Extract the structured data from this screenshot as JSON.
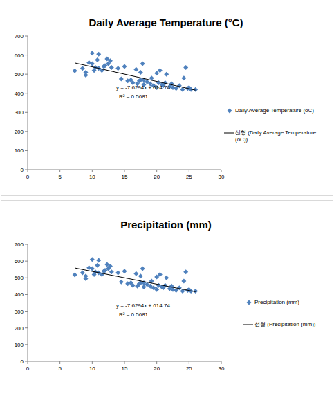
{
  "chart_data": [
    {
      "type": "scatter",
      "title": "Daily Average Temperature (°C)",
      "x": [
        7.3,
        8.5,
        9,
        9,
        9.5,
        10,
        10,
        10.3,
        10.5,
        10.8,
        11,
        11,
        11.5,
        11.8,
        12,
        12.3,
        12.5,
        12.8,
        13,
        14,
        14.5,
        15,
        15.5,
        16,
        16.3,
        16.8,
        17,
        17.3,
        17.5,
        17.5,
        17.8,
        18,
        18,
        18.5,
        19,
        19.2,
        19.5,
        20,
        20,
        20.3,
        20.5,
        20.8,
        21,
        21.3,
        21.5,
        22,
        22.3,
        22.5,
        23,
        23.5,
        24,
        24.2,
        24.5,
        24.8,
        25,
        25.3,
        26
      ],
      "series": [
        {
          "name": "Daily Average Temperature (oC)",
          "color": "#4f81bd",
          "marker": "diamond",
          "values": [
            518,
            530,
            510,
            495,
            560,
            555,
            610,
            520,
            535,
            575,
            530,
            605,
            520,
            540,
            545,
            580,
            555,
            570,
            535,
            530,
            475,
            540,
            465,
            470,
            455,
            525,
            450,
            465,
            470,
            510,
            555,
            445,
            470,
            460,
            450,
            480,
            440,
            430,
            505,
            455,
            520,
            445,
            440,
            455,
            500,
            435,
            450,
            430,
            425,
            440,
            420,
            480,
            535,
            425,
            430,
            420,
            420
          ]
        }
      ],
      "trendline": {
        "name": "선형 (Daily Average Temperature (oC))",
        "color": "#000000",
        "line_style": "solid",
        "slope": -7.6294,
        "intercept": 614.74,
        "equation": "y = -7.6294x + 614.74",
        "r2": 0.5681,
        "r2_label": "R² = 0.5681"
      },
      "xlim": [
        0,
        30
      ],
      "xticks": [
        0,
        5,
        10,
        15,
        20,
        25,
        30
      ],
      "ylim": [
        0,
        700
      ],
      "yticks": [
        0,
        100,
        200,
        300,
        400,
        500,
        600,
        700
      ],
      "grid": false,
      "legend": "right"
    },
    {
      "type": "scatter",
      "title": "Precipitation (mm)",
      "x": [
        7.3,
        8.5,
        9,
        9,
        9.5,
        10,
        10,
        10.3,
        10.5,
        10.8,
        11,
        11,
        11.5,
        11.8,
        12,
        12.3,
        12.5,
        12.8,
        13,
        14,
        14.5,
        15,
        15.5,
        16,
        16.3,
        16.8,
        17,
        17.3,
        17.5,
        17.5,
        17.8,
        18,
        18,
        18.5,
        19,
        19.2,
        19.5,
        20,
        20,
        20.3,
        20.5,
        20.8,
        21,
        21.3,
        21.5,
        22,
        22.3,
        22.5,
        23,
        23.5,
        24,
        24.2,
        24.5,
        24.8,
        25,
        25.3,
        26
      ],
      "series": [
        {
          "name": "Precipitation (mm)",
          "color": "#4f81bd",
          "marker": "diamond",
          "values": [
            518,
            530,
            510,
            495,
            560,
            555,
            610,
            520,
            535,
            575,
            530,
            605,
            520,
            540,
            545,
            580,
            555,
            570,
            535,
            530,
            475,
            540,
            465,
            470,
            455,
            525,
            450,
            465,
            470,
            510,
            555,
            445,
            470,
            460,
            450,
            480,
            440,
            430,
            505,
            455,
            520,
            445,
            440,
            455,
            500,
            435,
            450,
            430,
            425,
            440,
            420,
            480,
            535,
            425,
            430,
            420,
            420
          ]
        }
      ],
      "trendline": {
        "name": "선형 (Precipitation (mm))",
        "color": "#000000",
        "line_style": "solid",
        "slope": -7.6294,
        "intercept": 614.74,
        "equation": "y = -7.6294x + 614.74",
        "r2": 0.5681,
        "r2_label": "R² = 0.5681"
      },
      "xlim": [
        0,
        30
      ],
      "xticks": [
        0,
        5,
        10,
        15,
        20,
        25,
        30
      ],
      "ylim": [
        0,
        700
      ],
      "yticks": [
        0,
        100,
        200,
        300,
        400,
        500,
        600,
        700
      ],
      "grid": false,
      "legend": "right"
    }
  ]
}
